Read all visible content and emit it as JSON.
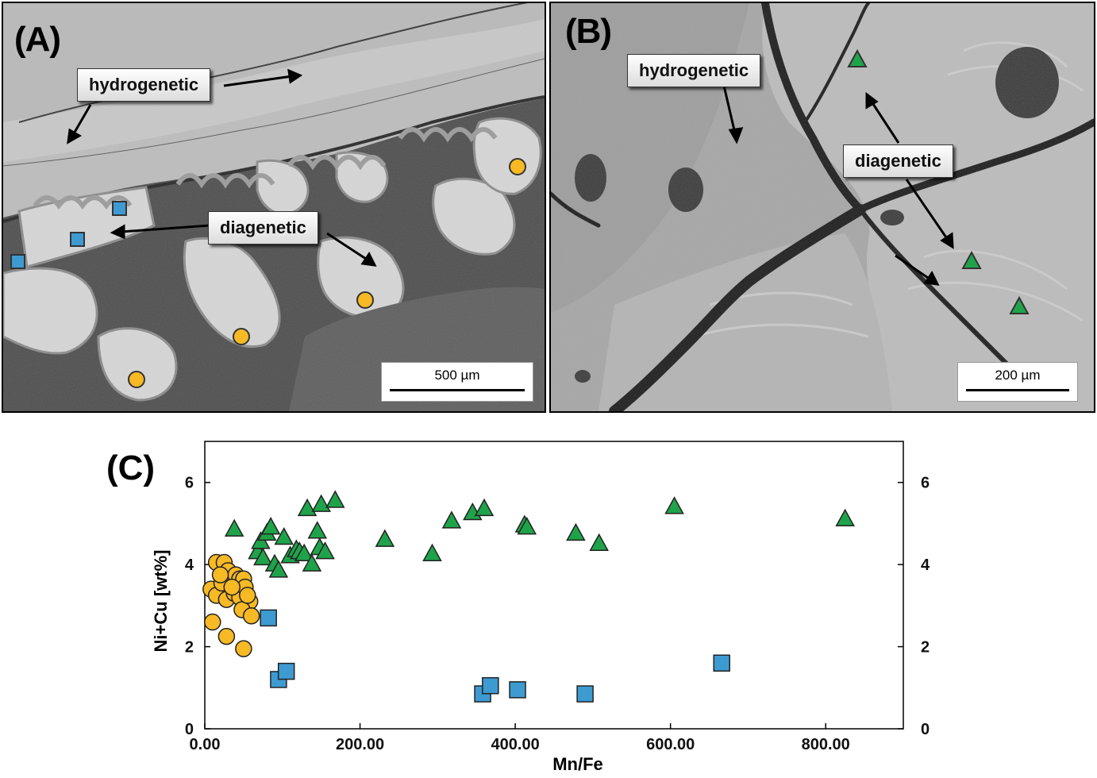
{
  "panels": {
    "a": {
      "letter": "(A)",
      "labels": {
        "hydrogenetic": "hydrogenetic",
        "diagenetic": "diagenetic"
      },
      "scale_bar": "500 µm"
    },
    "b": {
      "letter": "(B)",
      "labels": {
        "hydrogenetic": "hydrogenetic",
        "diagenetic": "diagenetic"
      },
      "scale_bar": "200 µm"
    },
    "c": {
      "letter": "(C)"
    }
  },
  "colors": {
    "circle": "#f7b924",
    "square": "#3d9bd2",
    "triangle": "#1fa34a"
  },
  "chart_data": {
    "type": "scatter",
    "xlabel": "Mn/Fe",
    "ylabel": "Ni+Cu [wt%]",
    "xlim": [
      0,
      900
    ],
    "ylim": [
      0,
      7
    ],
    "x_ticks": [
      "0.00",
      "200.00",
      "400.00",
      "600.00",
      "800.00"
    ],
    "y_ticks": [
      "0",
      "2",
      "4",
      "6"
    ],
    "y2_ticks": [
      "0",
      "2",
      "4",
      "6"
    ],
    "series": [
      {
        "marker": "circle",
        "points": [
          [
            15,
            4.05
          ],
          [
            25,
            4.05
          ],
          [
            30,
            3.85
          ],
          [
            40,
            3.75
          ],
          [
            45,
            3.65
          ],
          [
            50,
            3.65
          ],
          [
            8,
            3.4
          ],
          [
            15,
            3.25
          ],
          [
            22,
            3.55
          ],
          [
            28,
            3.15
          ],
          [
            38,
            3.3
          ],
          [
            45,
            3.2
          ],
          [
            52,
            3.45
          ],
          [
            58,
            3.1
          ],
          [
            48,
            2.9
          ],
          [
            60,
            2.75
          ],
          [
            10,
            2.6
          ],
          [
            28,
            2.25
          ],
          [
            50,
            1.95
          ],
          [
            20,
            3.75
          ],
          [
            35,
            3.45
          ],
          [
            55,
            3.25
          ]
        ]
      },
      {
        "marker": "square",
        "points": [
          [
            82,
            2.7
          ],
          [
            95,
            1.2
          ],
          [
            105,
            1.4
          ],
          [
            358,
            0.85
          ],
          [
            368,
            1.05
          ],
          [
            403,
            0.95
          ],
          [
            490,
            0.85
          ],
          [
            666,
            1.6
          ]
        ]
      },
      {
        "marker": "triangle",
        "points": [
          [
            38,
            4.85
          ],
          [
            68,
            4.3
          ],
          [
            72,
            4.55
          ],
          [
            75,
            4.15
          ],
          [
            80,
            4.75
          ],
          [
            85,
            4.9
          ],
          [
            90,
            4.0
          ],
          [
            95,
            3.85
          ],
          [
            102,
            4.65
          ],
          [
            110,
            4.2
          ],
          [
            118,
            4.35
          ],
          [
            122,
            4.3
          ],
          [
            128,
            4.25
          ],
          [
            132,
            5.35
          ],
          [
            138,
            4.0
          ],
          [
            145,
            4.8
          ],
          [
            148,
            4.4
          ],
          [
            150,
            5.45
          ],
          [
            155,
            4.3
          ],
          [
            168,
            5.55
          ],
          [
            232,
            4.6
          ],
          [
            293,
            4.25
          ],
          [
            318,
            5.05
          ],
          [
            345,
            5.25
          ],
          [
            360,
            5.35
          ],
          [
            412,
            4.95
          ],
          [
            415,
            4.9
          ],
          [
            478,
            4.75
          ],
          [
            508,
            4.5
          ],
          [
            605,
            5.4
          ],
          [
            825,
            5.1
          ]
        ]
      }
    ]
  }
}
